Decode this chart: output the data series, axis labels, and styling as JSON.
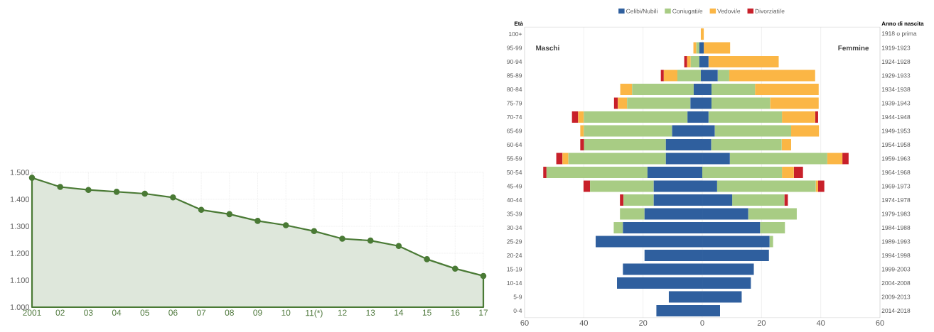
{
  "chart_data": [
    {
      "type": "area",
      "categories": [
        "2001",
        "02",
        "03",
        "04",
        "05",
        "06",
        "07",
        "08",
        "09",
        "10",
        "11(*)",
        "12",
        "13",
        "14",
        "15",
        "16",
        "17"
      ],
      "values": [
        1480,
        1446,
        1435,
        1428,
        1421,
        1407,
        1361,
        1345,
        1320,
        1304,
        1282,
        1254,
        1247,
        1227,
        1178,
        1143,
        1116
      ],
      "color": "#4a7a35",
      "marker": "circle",
      "grid": true,
      "ylim": [
        1000,
        1500
      ],
      "yticks": [
        {
          "value": 1000,
          "label": "1.000"
        },
        {
          "value": 1100,
          "label": "1.100"
        },
        {
          "value": 1200,
          "label": "1.200"
        },
        {
          "value": 1300,
          "label": "1.300"
        },
        {
          "value": 1400,
          "label": "1.400"
        },
        {
          "value": 1500,
          "label": "1.500"
        }
      ]
    },
    {
      "type": "bar",
      "orientation": "horizontal",
      "stacked": true,
      "legend": "top",
      "grid": "x",
      "ylabel": "Età",
      "y2label": "Anno di nascita",
      "annotations": [
        "Maschi",
        "Femmine"
      ],
      "categories": [
        "100+",
        "95-99",
        "90-94",
        "85-89",
        "80-84",
        "75-79",
        "70-74",
        "65-69",
        "60-64",
        "55-59",
        "50-54",
        "45-49",
        "40-44",
        "35-39",
        "30-34",
        "25-29",
        "20-24",
        "15-19",
        "10-14",
        "5-9",
        "0-4"
      ],
      "y2_categories": [
        "1918 o prima",
        "1919-1923",
        "1924-1928",
        "1929-1933",
        "1934-1938",
        "1939-1943",
        "1944-1948",
        "1949-1953",
        "1954-1958",
        "1959-1963",
        "1964-1968",
        "1969-1973",
        "1974-1978",
        "1979-1983",
        "1984-1988",
        "1989-1993",
        "1994-1998",
        "1999-2003",
        "2004-2008",
        "2009-2013",
        "2014-2018"
      ],
      "xlim": [
        -60,
        60
      ],
      "xticks": [
        {
          "value": -60,
          "label": "60"
        },
        {
          "value": -40,
          "label": "40"
        },
        {
          "value": -20,
          "label": "20"
        },
        0,
        20,
        40,
        60
      ],
      "series": [
        {
          "name": "Celibi/Nubili",
          "color": "#2f5f9e",
          "values": [
            0,
            -1,
            -1,
            -0.5,
            -2.9,
            -4,
            -5,
            -10.2,
            -12.3,
            -12.3,
            -18.5,
            -16.4,
            -16.4,
            -19.5,
            -26.8,
            -36,
            -19.5,
            -26.8,
            -28.8,
            -11.3,
            -15.5
          ]
        },
        {
          "name": "Coniugati/e",
          "color": "#a8cc84",
          "values": [
            0,
            -1,
            -2.9,
            -7.9,
            -20.8,
            -21.4,
            -35,
            -29.8,
            -27.6,
            -32.9,
            -34.1,
            -21.5,
            -10.2,
            -8.3,
            -3.1,
            0,
            0,
            0,
            0,
            0,
            0
          ]
        },
        {
          "name": "Vedovi/e",
          "color": "#fbb645",
          "values": [
            -0.5,
            -1,
            -1.2,
            -4.6,
            -4,
            -3.1,
            -1.9,
            -1.2,
            0,
            -2,
            0,
            0,
            0,
            0,
            0,
            0,
            0,
            0,
            0,
            0,
            0
          ]
        },
        {
          "name": "Divorziati/e",
          "color": "#c8202a",
          "values": [
            0,
            0,
            -1,
            -1,
            0,
            -1.3,
            -2.1,
            0,
            -1.3,
            -2.1,
            -1.1,
            -2.2,
            -1.2,
            0,
            0,
            0,
            0,
            0,
            0,
            0,
            0
          ]
        },
        {
          "color": "#2f5f9e",
          "values": [
            0,
            0.5,
            2.1,
            5.2,
            3.1,
            3.1,
            2.1,
            4.2,
            3,
            9.3,
            0,
            5,
            10.1,
            15.5,
            19.5,
            22.7,
            22.5,
            17.4,
            16.4,
            13.3,
            6
          ]
        },
        {
          "color": "#a8cc84",
          "values": [
            0,
            0,
            0,
            3.9,
            14.7,
            19.8,
            24.8,
            25.8,
            23.8,
            32.9,
            26.9,
            33.3,
            17.6,
            16.4,
            8.4,
            1.2,
            0,
            0,
            0,
            0,
            0
          ]
        },
        {
          "color": "#fbb645",
          "values": [
            0.5,
            8.9,
            23.7,
            29,
            21.5,
            16.4,
            11.2,
            9.4,
            3.2,
            5.1,
            4,
            0.8,
            0,
            0,
            0,
            0,
            0,
            0,
            0,
            0,
            0
          ]
        },
        {
          "color": "#c8202a",
          "values": [
            0,
            0,
            0,
            0,
            0,
            0,
            1,
            0,
            0,
            2.1,
            3.1,
            2.1,
            1.2,
            0,
            0,
            0,
            0,
            0,
            0,
            0,
            0
          ]
        }
      ]
    }
  ]
}
